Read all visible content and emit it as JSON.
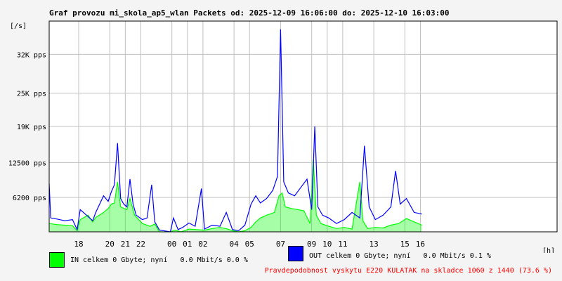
{
  "chart_data": {
    "type": "area",
    "title": "Graf provozu mi_skola_ap5_wlan Packets od: 2025-12-09 16:06:00 do: 2025-12-10 16:03:00",
    "ylabel": "[/s]",
    "xlabel": "[h]",
    "ylim": [
      0,
      38000
    ],
    "grid": true,
    "y_ticks": [
      {
        "value": 6200,
        "label": "6200 pps"
      },
      {
        "value": 12500,
        "label": "12500 pps"
      },
      {
        "value": 19000,
        "label": "19K pps"
      },
      {
        "value": 25000,
        "label": "25K pps"
      },
      {
        "value": 32000,
        "label": "32K pps"
      }
    ],
    "x_ticks": [
      {
        "hours": 1.9,
        "label": "18"
      },
      {
        "hours": 3.9,
        "label": "20"
      },
      {
        "hours": 4.9,
        "label": "21"
      },
      {
        "hours": 5.9,
        "label": "22"
      },
      {
        "hours": 7.9,
        "label": "00"
      },
      {
        "hours": 8.9,
        "label": "01"
      },
      {
        "hours": 9.9,
        "label": "02"
      },
      {
        "hours": 11.9,
        "label": "04"
      },
      {
        "hours": 12.9,
        "label": "05"
      },
      {
        "hours": 14.9,
        "label": "07"
      },
      {
        "hours": 16.9,
        "label": "09"
      },
      {
        "hours": 17.9,
        "label": "10"
      },
      {
        "hours": 18.9,
        "label": "11"
      },
      {
        "hours": 20.9,
        "label": "13"
      },
      {
        "hours": 22.9,
        "label": "15"
      },
      {
        "hours": 23.9,
        "label": "16"
      }
    ],
    "x_range_hours": [
      0,
      32.7
    ],
    "data_end_hours": 24.0,
    "series": [
      {
        "name": "IN",
        "color": "#00ff00",
        "points": [
          [
            0,
            1500
          ],
          [
            0.5,
            1300
          ],
          [
            1,
            1200
          ],
          [
            1.5,
            1100
          ],
          [
            1.8,
            200
          ],
          [
            2,
            2200
          ],
          [
            2.5,
            3000
          ],
          [
            2.8,
            1800
          ],
          [
            3,
            2600
          ],
          [
            3.5,
            3500
          ],
          [
            3.8,
            4200
          ],
          [
            4,
            5000
          ],
          [
            4.2,
            5200
          ],
          [
            4.4,
            9000
          ],
          [
            4.6,
            4500
          ],
          [
            5,
            4000
          ],
          [
            5.2,
            6000
          ],
          [
            5.5,
            3000
          ],
          [
            6,
            1500
          ],
          [
            6.5,
            1000
          ],
          [
            6.8,
            1400
          ],
          [
            7.1,
            0
          ],
          [
            7.8,
            0
          ],
          [
            8.1,
            300
          ],
          [
            8.5,
            0
          ],
          [
            9,
            500
          ],
          [
            9.5,
            400
          ],
          [
            10,
            300
          ],
          [
            10.5,
            600
          ],
          [
            11,
            800
          ],
          [
            11.5,
            500
          ],
          [
            11.8,
            200
          ],
          [
            12.2,
            0
          ],
          [
            12.6,
            200
          ],
          [
            13,
            800
          ],
          [
            13.3,
            1800
          ],
          [
            13.6,
            2500
          ],
          [
            14,
            3000
          ],
          [
            14.5,
            3500
          ],
          [
            14.8,
            6500
          ],
          [
            15,
            7000
          ],
          [
            15.2,
            4500
          ],
          [
            15.6,
            4200
          ],
          [
            16,
            4000
          ],
          [
            16.4,
            3800
          ],
          [
            16.8,
            1500
          ],
          [
            17,
            13000
          ],
          [
            17.2,
            3000
          ],
          [
            17.5,
            1500
          ],
          [
            18,
            1000
          ],
          [
            18.5,
            600
          ],
          [
            19,
            800
          ],
          [
            19.5,
            500
          ],
          [
            20,
            9000
          ],
          [
            20.2,
            2000
          ],
          [
            20.5,
            600
          ],
          [
            21,
            800
          ],
          [
            21.5,
            700
          ],
          [
            22,
            1200
          ],
          [
            22.5,
            1500
          ],
          [
            23,
            2400
          ],
          [
            23.5,
            1800
          ],
          [
            24,
            1200
          ]
        ]
      },
      {
        "name": "OUT",
        "color": "#0000ff",
        "points": [
          [
            0,
            8700
          ],
          [
            0.1,
            2500
          ],
          [
            0.5,
            2300
          ],
          [
            1,
            2000
          ],
          [
            1.5,
            2200
          ],
          [
            1.8,
            400
          ],
          [
            2,
            4000
          ],
          [
            2.4,
            3000
          ],
          [
            2.8,
            2000
          ],
          [
            3,
            3500
          ],
          [
            3.5,
            6500
          ],
          [
            3.8,
            5500
          ],
          [
            4,
            7200
          ],
          [
            4.2,
            8500
          ],
          [
            4.4,
            16000
          ],
          [
            4.6,
            6000
          ],
          [
            4.8,
            5000
          ],
          [
            5,
            4500
          ],
          [
            5.2,
            9500
          ],
          [
            5.4,
            5000
          ],
          [
            5.6,
            3000
          ],
          [
            6,
            2200
          ],
          [
            6.3,
            2500
          ],
          [
            6.6,
            8500
          ],
          [
            6.8,
            1800
          ],
          [
            7.1,
            300
          ],
          [
            7.8,
            0
          ],
          [
            8,
            2500
          ],
          [
            8.3,
            400
          ],
          [
            8.6,
            800
          ],
          [
            9,
            1600
          ],
          [
            9.4,
            1000
          ],
          [
            9.8,
            7800
          ],
          [
            10,
            500
          ],
          [
            10.5,
            1200
          ],
          [
            11,
            1000
          ],
          [
            11.4,
            3500
          ],
          [
            11.8,
            400
          ],
          [
            12.2,
            200
          ],
          [
            12.6,
            1200
          ],
          [
            13,
            5000
          ],
          [
            13.3,
            6500
          ],
          [
            13.6,
            5200
          ],
          [
            14,
            6000
          ],
          [
            14.4,
            7500
          ],
          [
            14.7,
            10000
          ],
          [
            14.9,
            36500
          ],
          [
            15.1,
            9000
          ],
          [
            15.4,
            7000
          ],
          [
            15.8,
            6500
          ],
          [
            16.2,
            8000
          ],
          [
            16.6,
            9500
          ],
          [
            16.9,
            4000
          ],
          [
            17.1,
            19000
          ],
          [
            17.3,
            4500
          ],
          [
            17.6,
            3000
          ],
          [
            18,
            2500
          ],
          [
            18.5,
            1500
          ],
          [
            19,
            2200
          ],
          [
            19.5,
            3500
          ],
          [
            20,
            2500
          ],
          [
            20.3,
            15500
          ],
          [
            20.6,
            4500
          ],
          [
            21,
            2200
          ],
          [
            21.5,
            3000
          ],
          [
            22,
            4500
          ],
          [
            22.3,
            11000
          ],
          [
            22.6,
            5000
          ],
          [
            23,
            6000
          ],
          [
            23.5,
            3500
          ],
          [
            24,
            3200
          ]
        ]
      }
    ]
  },
  "legend": {
    "in_text": "IN celkem 0 Gbyte; nyní   0.0 Mbit/s 0.0 %",
    "out_text": "OUT celkem 0 Gbyte; nyní   0.0 Mbit/s 0.1 %",
    "in_color": "#00ff00",
    "out_color": "#0000ff"
  },
  "footer": {
    "text": "Pravdepodobnost vyskytu E220 KULATAK na skladce 1060 z 1440 (73.6 %)",
    "color": "#ff0000"
  },
  "colors": {
    "plot_bg": "#ffffff",
    "grid": "#c0c0c0",
    "frame": "#000000"
  }
}
